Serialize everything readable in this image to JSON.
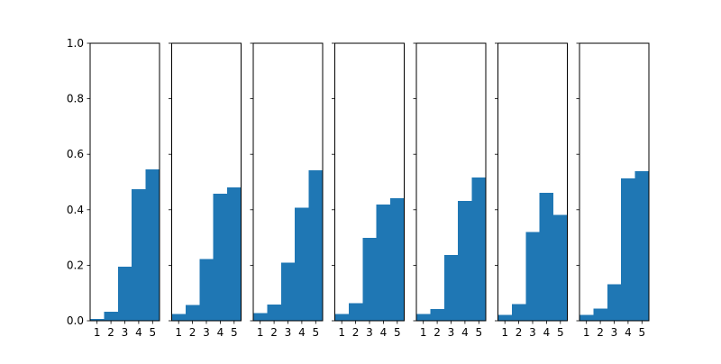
{
  "chart_data": {
    "type": "bar",
    "layout": "small-multiples",
    "bar_color": "#1f77b4",
    "ylim": [
      0,
      1.0
    ],
    "yticks": [
      "0.0",
      "0.2",
      "0.4",
      "0.6",
      "0.8",
      "1.0"
    ],
    "x_tick_labels": [
      "1",
      "2",
      "3",
      "4",
      "5"
    ],
    "panels": [
      {
        "values": [
          0.006,
          0.032,
          0.194,
          0.474,
          0.545
        ]
      },
      {
        "values": [
          0.025,
          0.057,
          0.222,
          0.458,
          0.48
        ]
      },
      {
        "values": [
          0.028,
          0.058,
          0.209,
          0.408,
          0.542
        ]
      },
      {
        "values": [
          0.024,
          0.064,
          0.298,
          0.419,
          0.441
        ]
      },
      {
        "values": [
          0.024,
          0.042,
          0.237,
          0.432,
          0.516
        ]
      },
      {
        "values": [
          0.021,
          0.06,
          0.32,
          0.461,
          0.382
        ]
      },
      {
        "values": [
          0.021,
          0.044,
          0.132,
          0.513,
          0.539
        ]
      }
    ]
  }
}
